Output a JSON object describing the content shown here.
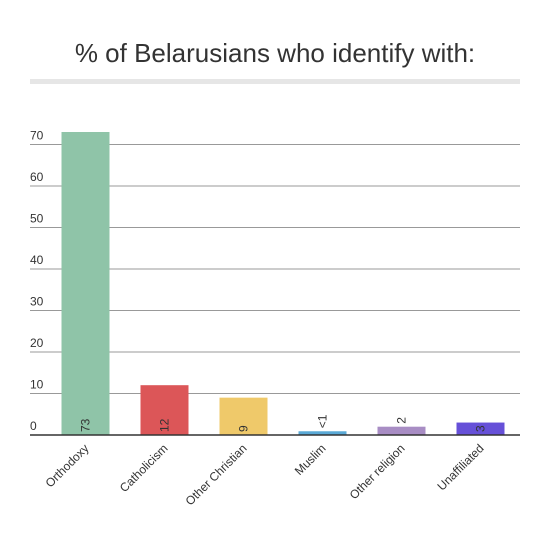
{
  "chart_data": {
    "type": "bar",
    "title": "% of Belarusians who identify with:",
    "categories": [
      "Orthodoxy",
      "Catholicism",
      "Other Christian",
      "Muslim",
      "Other religion",
      "Unaffiliated"
    ],
    "values": [
      73,
      12,
      9,
      0.9,
      2,
      3
    ],
    "value_labels": [
      "73",
      "12",
      "9",
      "<1",
      "2",
      "3"
    ],
    "colors": [
      "#8fc4a8",
      "#dc5658",
      "#efc96a",
      "#5aa9d6",
      "#a88dc4",
      "#6650d8"
    ],
    "ylim": [
      0,
      73
    ],
    "yticks": [
      0,
      10,
      20,
      30,
      40,
      50,
      60,
      70
    ],
    "grid": true
  }
}
